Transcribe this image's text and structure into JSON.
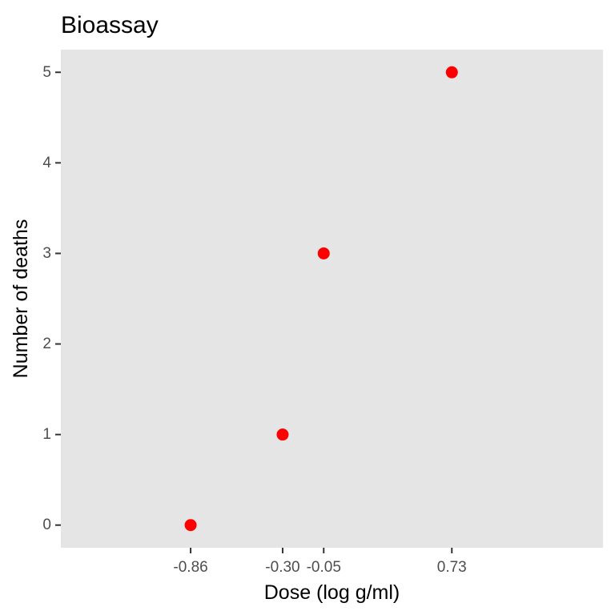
{
  "chart_data": {
    "type": "scatter",
    "title": "Bioassay",
    "xlabel": "Dose (log g/ml)",
    "ylabel": "Number of deaths",
    "x": [
      -0.86,
      -0.3,
      -0.05,
      0.73
    ],
    "y": [
      0,
      1,
      3,
      5
    ],
    "x_tick_labels": [
      "-0.86",
      "-0.30",
      "-0.05",
      "0.73"
    ],
    "y_ticks": [
      0,
      1,
      2,
      3,
      4,
      5
    ],
    "y_tick_labels": [
      "0",
      "1",
      "2",
      "3",
      "4",
      "5"
    ],
    "xlim": [
      -1.65,
      1.65
    ],
    "ylim": [
      -0.25,
      5.25
    ],
    "grid": false,
    "legend": "none",
    "colors": {
      "point": "#ff0000",
      "panel_background": "#e5e5e5"
    }
  }
}
